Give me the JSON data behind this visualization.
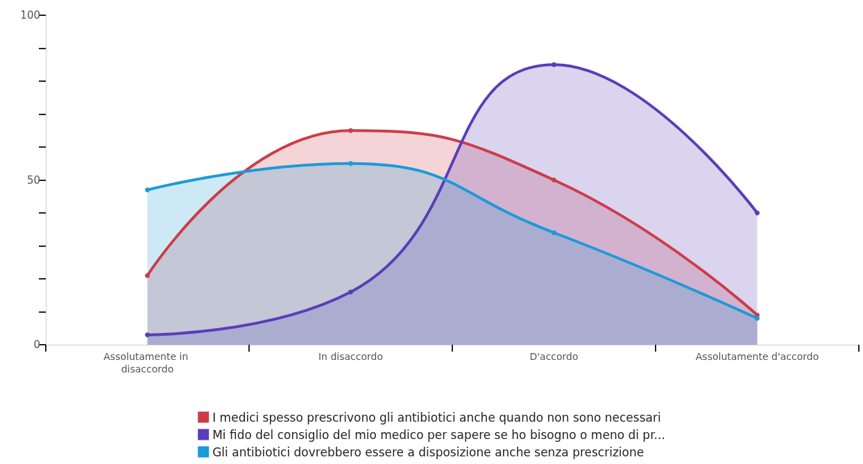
{
  "chart_data": {
    "type": "area",
    "categories": [
      "Assolutamente in disaccordo",
      "In disaccordo",
      "D'accordo",
      "Assolutamente d'accordo"
    ],
    "series": [
      {
        "name": "I medici spesso prescrivono gli antibiotici anche quando non sono necessari",
        "color": "#cc3d48",
        "values": [
          21,
          65,
          50,
          9
        ]
      },
      {
        "name": "Mi fido del consiglio del mio medico per sapere se ho bisogno o meno di pr...",
        "color": "#5a3db8",
        "values": [
          3,
          16,
          85,
          40
        ]
      },
      {
        "name": "Gli antibiotici dovrebbero essere a disposizione anche senza prescrizione",
        "color": "#1b9ad8",
        "values": [
          47,
          55,
          34,
          8
        ]
      }
    ],
    "ylim": [
      0,
      100
    ],
    "yticks": [
      0,
      {
        "value": 10,
        "label": null
      },
      {
        "value": 20,
        "label": null
      },
      {
        "value": 30,
        "label": null
      },
      {
        "value": 40,
        "label": null
      },
      50,
      {
        "value": 60,
        "label": null
      },
      {
        "value": 70,
        "label": null
      },
      {
        "value": 80,
        "label": null
      },
      {
        "value": 90,
        "label": null
      },
      100
    ],
    "grid": false,
    "legend": "bottom",
    "marker": "circle",
    "line_style": "solid"
  }
}
